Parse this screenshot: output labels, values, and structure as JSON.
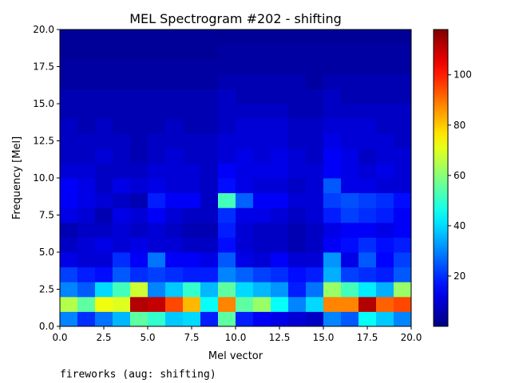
{
  "chart_data": {
    "type": "heatmap",
    "title": "MEL Spectrogram #202 - shifting",
    "xlabel": "Mel vector",
    "ylabel": "Frequency [Mel]",
    "xlim": [
      0,
      20
    ],
    "ylim": [
      0,
      20
    ],
    "xticks": [
      "0.0",
      "2.5",
      "5.0",
      "7.5",
      "10.0",
      "12.5",
      "15.0",
      "17.5",
      "20.0"
    ],
    "yticks": [
      "0.0",
      "2.5",
      "5.0",
      "7.5",
      "10.0",
      "12.5",
      "15.0",
      "17.5",
      "20.0"
    ],
    "colormap": "jet",
    "vmin": 0,
    "vmax": 118,
    "colorbar_ticks": [
      "20",
      "40",
      "60",
      "80",
      "100"
    ],
    "colorbar_tick_values": [
      20,
      40,
      60,
      80,
      100
    ],
    "n_cols": 20,
    "n_rows": 20,
    "rows_bottom_to_top": [
      [
        30,
        20,
        28,
        36,
        55,
        50,
        38,
        40,
        18,
        55,
        18,
        14,
        12,
        10,
        8,
        30,
        25,
        45,
        38,
        30
      ],
      [
        65,
        55,
        72,
        70,
        112,
        110,
        95,
        82,
        45,
        88,
        55,
        62,
        45,
        30,
        40,
        88,
        88,
        112,
        92,
        95
      ],
      [
        30,
        25,
        40,
        52,
        68,
        30,
        38,
        50,
        36,
        55,
        40,
        36,
        32,
        18,
        28,
        62,
        52,
        42,
        35,
        62
      ],
      [
        22,
        18,
        16,
        25,
        20,
        22,
        20,
        18,
        18,
        30,
        26,
        22,
        20,
        16,
        18,
        35,
        22,
        20,
        18,
        25
      ],
      [
        12,
        10,
        10,
        20,
        14,
        28,
        14,
        14,
        12,
        25,
        12,
        10,
        14,
        10,
        10,
        32,
        12,
        25,
        15,
        22
      ],
      [
        8,
        10,
        12,
        10,
        12,
        10,
        10,
        8,
        8,
        16,
        10,
        8,
        8,
        6,
        8,
        14,
        16,
        20,
        16,
        18
      ],
      [
        6,
        8,
        8,
        10,
        8,
        10,
        8,
        6,
        6,
        18,
        10,
        8,
        8,
        6,
        8,
        12,
        14,
        14,
        12,
        14
      ],
      [
        12,
        10,
        6,
        12,
        10,
        14,
        10,
        8,
        8,
        20,
        12,
        12,
        10,
        8,
        10,
        18,
        22,
        20,
        18,
        14
      ],
      [
        14,
        12,
        10,
        8,
        6,
        18,
        14,
        14,
        8,
        52,
        26,
        14,
        14,
        10,
        10,
        22,
        24,
        22,
        20,
        16
      ],
      [
        14,
        12,
        8,
        12,
        10,
        12,
        10,
        10,
        8,
        16,
        12,
        10,
        10,
        8,
        10,
        25,
        12,
        12,
        10,
        10
      ],
      [
        10,
        10,
        8,
        8,
        8,
        10,
        10,
        10,
        8,
        14,
        12,
        12,
        12,
        10,
        10,
        14,
        12,
        10,
        12,
        10
      ],
      [
        8,
        8,
        10,
        8,
        6,
        8,
        10,
        8,
        8,
        10,
        12,
        10,
        12,
        10,
        8,
        14,
        12,
        8,
        10,
        10
      ],
      [
        8,
        8,
        8,
        8,
        6,
        8,
        8,
        8,
        8,
        10,
        10,
        10,
        10,
        8,
        8,
        12,
        10,
        10,
        10,
        8
      ],
      [
        8,
        6,
        8,
        6,
        6,
        6,
        8,
        6,
        6,
        8,
        10,
        10,
        10,
        8,
        8,
        10,
        10,
        10,
        8,
        8
      ],
      [
        6,
        6,
        6,
        6,
        6,
        6,
        6,
        6,
        6,
        8,
        8,
        8,
        8,
        6,
        6,
        8,
        8,
        8,
        8,
        8
      ],
      [
        6,
        6,
        6,
        6,
        6,
        6,
        6,
        6,
        6,
        8,
        6,
        6,
        6,
        6,
        6,
        8,
        6,
        6,
        6,
        6
      ],
      [
        4,
        4,
        4,
        4,
        4,
        4,
        4,
        4,
        4,
        6,
        6,
        6,
        6,
        6,
        4,
        6,
        6,
        6,
        6,
        6
      ],
      [
        4,
        4,
        4,
        4,
        4,
        4,
        4,
        4,
        4,
        4,
        4,
        4,
        4,
        4,
        4,
        4,
        4,
        4,
        4,
        4
      ],
      [
        3,
        3,
        3,
        3,
        3,
        3,
        3,
        3,
        3,
        4,
        4,
        4,
        4,
        4,
        4,
        4,
        4,
        4,
        4,
        4
      ],
      [
        3,
        3,
        3,
        3,
        3,
        3,
        3,
        3,
        3,
        3,
        3,
        3,
        3,
        3,
        3,
        3,
        3,
        3,
        3,
        3
      ]
    ]
  },
  "caption": "fireworks (aug: shifting)"
}
